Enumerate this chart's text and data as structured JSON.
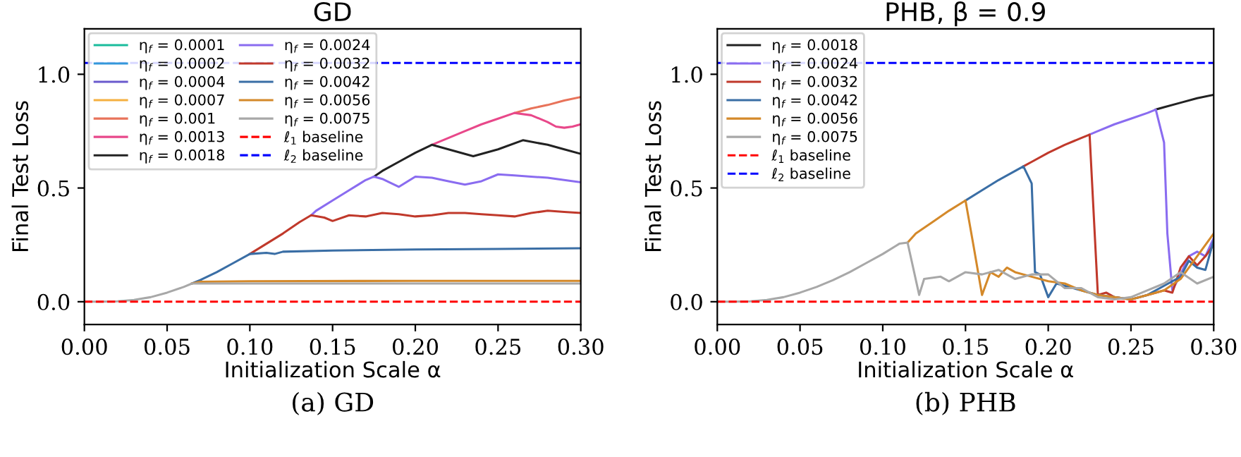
{
  "chart_data": [
    {
      "type": "line",
      "title": "GD",
      "xlabel": "Initialization Scale α",
      "ylabel": "Final Test Loss",
      "xlim": [
        0,
        0.3
      ],
      "ylim": [
        -0.1,
        1.2
      ],
      "xticks": [
        {
          "value": 0,
          "label": "0.00"
        },
        {
          "value": 0.05,
          "label": "0.05"
        },
        {
          "value": 0.1,
          "label": "0.10"
        },
        {
          "value": 0.15,
          "label": "0.15"
        },
        {
          "value": 0.2,
          "label": "0.20"
        },
        {
          "value": 0.25,
          "label": "0.25"
        },
        {
          "value": 0.3,
          "label": "0.30"
        }
      ],
      "yticks": [
        {
          "value": 0,
          "label": "0.0"
        },
        {
          "value": 0.5,
          "label": "0.5"
        },
        {
          "value": 1,
          "label": "1.0"
        }
      ],
      "grid": false,
      "legend": "top left",
      "annotations": [
        "(a) GD"
      ],
      "ref_lines": [
        {
          "axis": "y",
          "value": 0,
          "label": "ℓ$_{1}$ baseline",
          "color": "#ff0000",
          "line_style": "dashed"
        },
        {
          "axis": "y",
          "value": 1.05,
          "label": "ℓ$_{2}$ baseline",
          "color": "#0000ff",
          "line_style": "dashed"
        }
      ],
      "series": [
        {
          "name": "η$_{f}$ = 0.0001",
          "color": "#1abc9c"
        },
        {
          "name": "η$_{f}$ = 0.0002",
          "color": "#3498db"
        },
        {
          "name": "η$_{f}$ = 0.0004",
          "color": "#6a5acd"
        },
        {
          "name": "η$_{f}$ = 0.0007",
          "color": "#f5b041"
        },
        {
          "name": "η$_{f}$ = 0.001",
          "color": "#e8735a",
          "x": [
            0.26,
            0.27,
            0.28,
            0.29,
            0.3
          ],
          "values": [
            0.83,
            0.85,
            0.865,
            0.885,
            0.9
          ]
        },
        {
          "name": "η$_{f}$ = 0.0013",
          "color": "#e8488a",
          "x": [
            0.21,
            0.22,
            0.23,
            0.24,
            0.25,
            0.26,
            0.27,
            0.28,
            0.285,
            0.29,
            0.295,
            0.3
          ],
          "values": [
            0.69,
            0.72,
            0.75,
            0.78,
            0.805,
            0.83,
            0.82,
            0.79,
            0.77,
            0.765,
            0.77,
            0.78
          ]
        },
        {
          "name": "η$_{f}$ = 0.0018",
          "color": "#222222",
          "x": [
            0.175,
            0.18,
            0.19,
            0.2,
            0.21,
            0.22,
            0.235,
            0.25,
            0.265,
            0.28,
            0.29,
            0.3
          ],
          "values": [
            0.55,
            0.575,
            0.615,
            0.655,
            0.69,
            0.67,
            0.64,
            0.67,
            0.71,
            0.69,
            0.67,
            0.65
          ]
        },
        {
          "name": "η$_{f}$ = 0.0024",
          "color": "#8a6cf0",
          "x": [
            0.137,
            0.14,
            0.15,
            0.16,
            0.17,
            0.175,
            0.18,
            0.19,
            0.2,
            0.21,
            0.22,
            0.23,
            0.24,
            0.25,
            0.26,
            0.27,
            0.28,
            0.29,
            0.3
          ],
          "values": [
            0.38,
            0.4,
            0.445,
            0.49,
            0.535,
            0.55,
            0.54,
            0.505,
            0.55,
            0.545,
            0.53,
            0.515,
            0.53,
            0.56,
            0.555,
            0.55,
            0.545,
            0.535,
            0.525
          ]
        },
        {
          "name": "η$_{f}$ = 0.0032",
          "color": "#c0392b",
          "x": [
            0.1,
            0.11,
            0.12,
            0.13,
            0.137,
            0.145,
            0.15,
            0.16,
            0.17,
            0.18,
            0.19,
            0.2,
            0.21,
            0.22,
            0.23,
            0.24,
            0.25,
            0.26,
            0.27,
            0.28,
            0.29,
            0.3
          ],
          "values": [
            0.21,
            0.255,
            0.3,
            0.35,
            0.38,
            0.37,
            0.355,
            0.38,
            0.375,
            0.39,
            0.385,
            0.375,
            0.38,
            0.39,
            0.39,
            0.385,
            0.38,
            0.375,
            0.39,
            0.4,
            0.395,
            0.39
          ]
        },
        {
          "name": "η$_{f}$ = 0.0042",
          "color": "#3a6ea5",
          "x": [
            0.065,
            0.07,
            0.08,
            0.09,
            0.1,
            0.11,
            0.115,
            0.12,
            0.15,
            0.2,
            0.25,
            0.3
          ],
          "values": [
            0.08,
            0.095,
            0.13,
            0.17,
            0.21,
            0.215,
            0.21,
            0.22,
            0.225,
            0.23,
            0.232,
            0.235
          ]
        },
        {
          "name": "η$_{f}$ = 0.0056",
          "color": "#d4892a",
          "x": [
            0.065,
            0.07,
            0.1,
            0.2,
            0.3
          ],
          "values": [
            0.08,
            0.088,
            0.09,
            0.092,
            0.092
          ]
        },
        {
          "name": "η$_{f}$ = 0.0075",
          "color": "#a8a8a8",
          "x": [
            0,
            0.01,
            0.02,
            0.03,
            0.04,
            0.05,
            0.06,
            0.065,
            0.07,
            0.15,
            0.3
          ],
          "values": [
            0,
            0,
            0.002,
            0.008,
            0.02,
            0.04,
            0.065,
            0.08,
            0.08,
            0.08,
            0.08
          ]
        }
      ]
    },
    {
      "type": "line",
      "title": "PHB, β = 0.9",
      "xlabel": "Initialization Scale α",
      "ylabel": "Final Test Loss",
      "xlim": [
        0,
        0.3
      ],
      "ylim": [
        -0.1,
        1.2
      ],
      "xticks": [
        {
          "value": 0,
          "label": "0.00"
        },
        {
          "value": 0.05,
          "label": "0.05"
        },
        {
          "value": 0.1,
          "label": "0.10"
        },
        {
          "value": 0.15,
          "label": "0.15"
        },
        {
          "value": 0.2,
          "label": "0.20"
        },
        {
          "value": 0.25,
          "label": "0.25"
        },
        {
          "value": 0.3,
          "label": "0.30"
        }
      ],
      "yticks": [
        {
          "value": 0,
          "label": "0.0"
        },
        {
          "value": 0.5,
          "label": "0.5"
        },
        {
          "value": 1,
          "label": "1.0"
        }
      ],
      "grid": false,
      "legend": "top left",
      "annotations": [
        "(b) PHB"
      ],
      "ref_lines": [
        {
          "axis": "y",
          "value": 0,
          "label": "ℓ$_{1}$ baseline",
          "color": "#ff0000",
          "line_style": "dashed"
        },
        {
          "axis": "y",
          "value": 1.05,
          "label": "ℓ$_{2}$ baseline",
          "color": "#0000ff",
          "line_style": "dashed"
        }
      ],
      "series": [
        {
          "name": "η$_{f}$ = 0.0018",
          "color": "#222222",
          "x": [
            0.265,
            0.27,
            0.28,
            0.29,
            0.3
          ],
          "values": [
            0.845,
            0.855,
            0.875,
            0.895,
            0.91
          ]
        },
        {
          "name": "η$_{f}$ = 0.0024",
          "color": "#8a6cf0",
          "x": [
            0.225,
            0.23,
            0.24,
            0.25,
            0.26,
            0.265,
            0.27,
            0.272,
            0.275,
            0.28,
            0.285,
            0.29,
            0.295,
            0.3
          ],
          "values": [
            0.735,
            0.75,
            0.78,
            0.805,
            0.83,
            0.845,
            0.7,
            0.3,
            0.05,
            0.12,
            0.2,
            0.22,
            0.2,
            0.28
          ]
        },
        {
          "name": "η$_{f}$ = 0.0032",
          "color": "#c0392b",
          "x": [
            0.185,
            0.19,
            0.2,
            0.21,
            0.22,
            0.225,
            0.23,
            0.235,
            0.24,
            0.25,
            0.26,
            0.27,
            0.275,
            0.28,
            0.285,
            0.29,
            0.295,
            0.3
          ],
          "values": [
            0.595,
            0.615,
            0.655,
            0.69,
            0.72,
            0.735,
            0.03,
            0.04,
            0.02,
            0.01,
            0.03,
            0.05,
            0.04,
            0.15,
            0.2,
            0.16,
            0.2,
            0.25
          ]
        },
        {
          "name": "η$_{f}$ = 0.0042",
          "color": "#3a6ea5",
          "x": [
            0.15,
            0.16,
            0.17,
            0.18,
            0.185,
            0.19,
            0.192,
            0.195,
            0.2,
            0.205,
            0.21,
            0.22,
            0.23,
            0.24,
            0.25,
            0.26,
            0.27,
            0.28,
            0.285,
            0.29,
            0.295,
            0.3
          ],
          "values": [
            0.445,
            0.49,
            0.535,
            0.575,
            0.595,
            0.52,
            0.13,
            0.12,
            0.02,
            0.08,
            0.07,
            0.05,
            0.03,
            0.02,
            0.01,
            0.03,
            0.07,
            0.11,
            0.18,
            0.15,
            0.14,
            0.27
          ]
        },
        {
          "name": "η$_{f}$ = 0.0056",
          "color": "#d4892a",
          "x": [
            0.115,
            0.12,
            0.13,
            0.14,
            0.15,
            0.155,
            0.16,
            0.165,
            0.17,
            0.175,
            0.18,
            0.19,
            0.2,
            0.21,
            0.22,
            0.23,
            0.24,
            0.25,
            0.26,
            0.27,
            0.28,
            0.29,
            0.3
          ],
          "values": [
            0.26,
            0.3,
            0.35,
            0.4,
            0.445,
            0.24,
            0.03,
            0.13,
            0.11,
            0.15,
            0.13,
            0.11,
            0.09,
            0.08,
            0.05,
            0.03,
            0.02,
            0.01,
            0.03,
            0.05,
            0.1,
            0.2,
            0.3
          ]
        },
        {
          "name": "η$_{f}$ = 0.0075",
          "color": "#a8a8a8",
          "x": [
            0,
            0.01,
            0.02,
            0.03,
            0.04,
            0.05,
            0.06,
            0.07,
            0.08,
            0.09,
            0.1,
            0.11,
            0.115,
            0.122,
            0.125,
            0.135,
            0.14,
            0.15,
            0.16,
            0.17,
            0.18,
            0.19,
            0.2,
            0.21,
            0.22,
            0.23,
            0.24,
            0.25,
            0.26,
            0.27,
            0.28,
            0.29,
            0.3
          ],
          "values": [
            0,
            0,
            0.002,
            0.008,
            0.02,
            0.04,
            0.065,
            0.095,
            0.13,
            0.17,
            0.21,
            0.255,
            0.26,
            0.03,
            0.1,
            0.11,
            0.09,
            0.13,
            0.12,
            0.14,
            0.1,
            0.12,
            0.12,
            0.06,
            0.06,
            0.02,
            0.01,
            0.02,
            0.05,
            0.08,
            0.13,
            0.08,
            0.11
          ]
        }
      ]
    }
  ]
}
